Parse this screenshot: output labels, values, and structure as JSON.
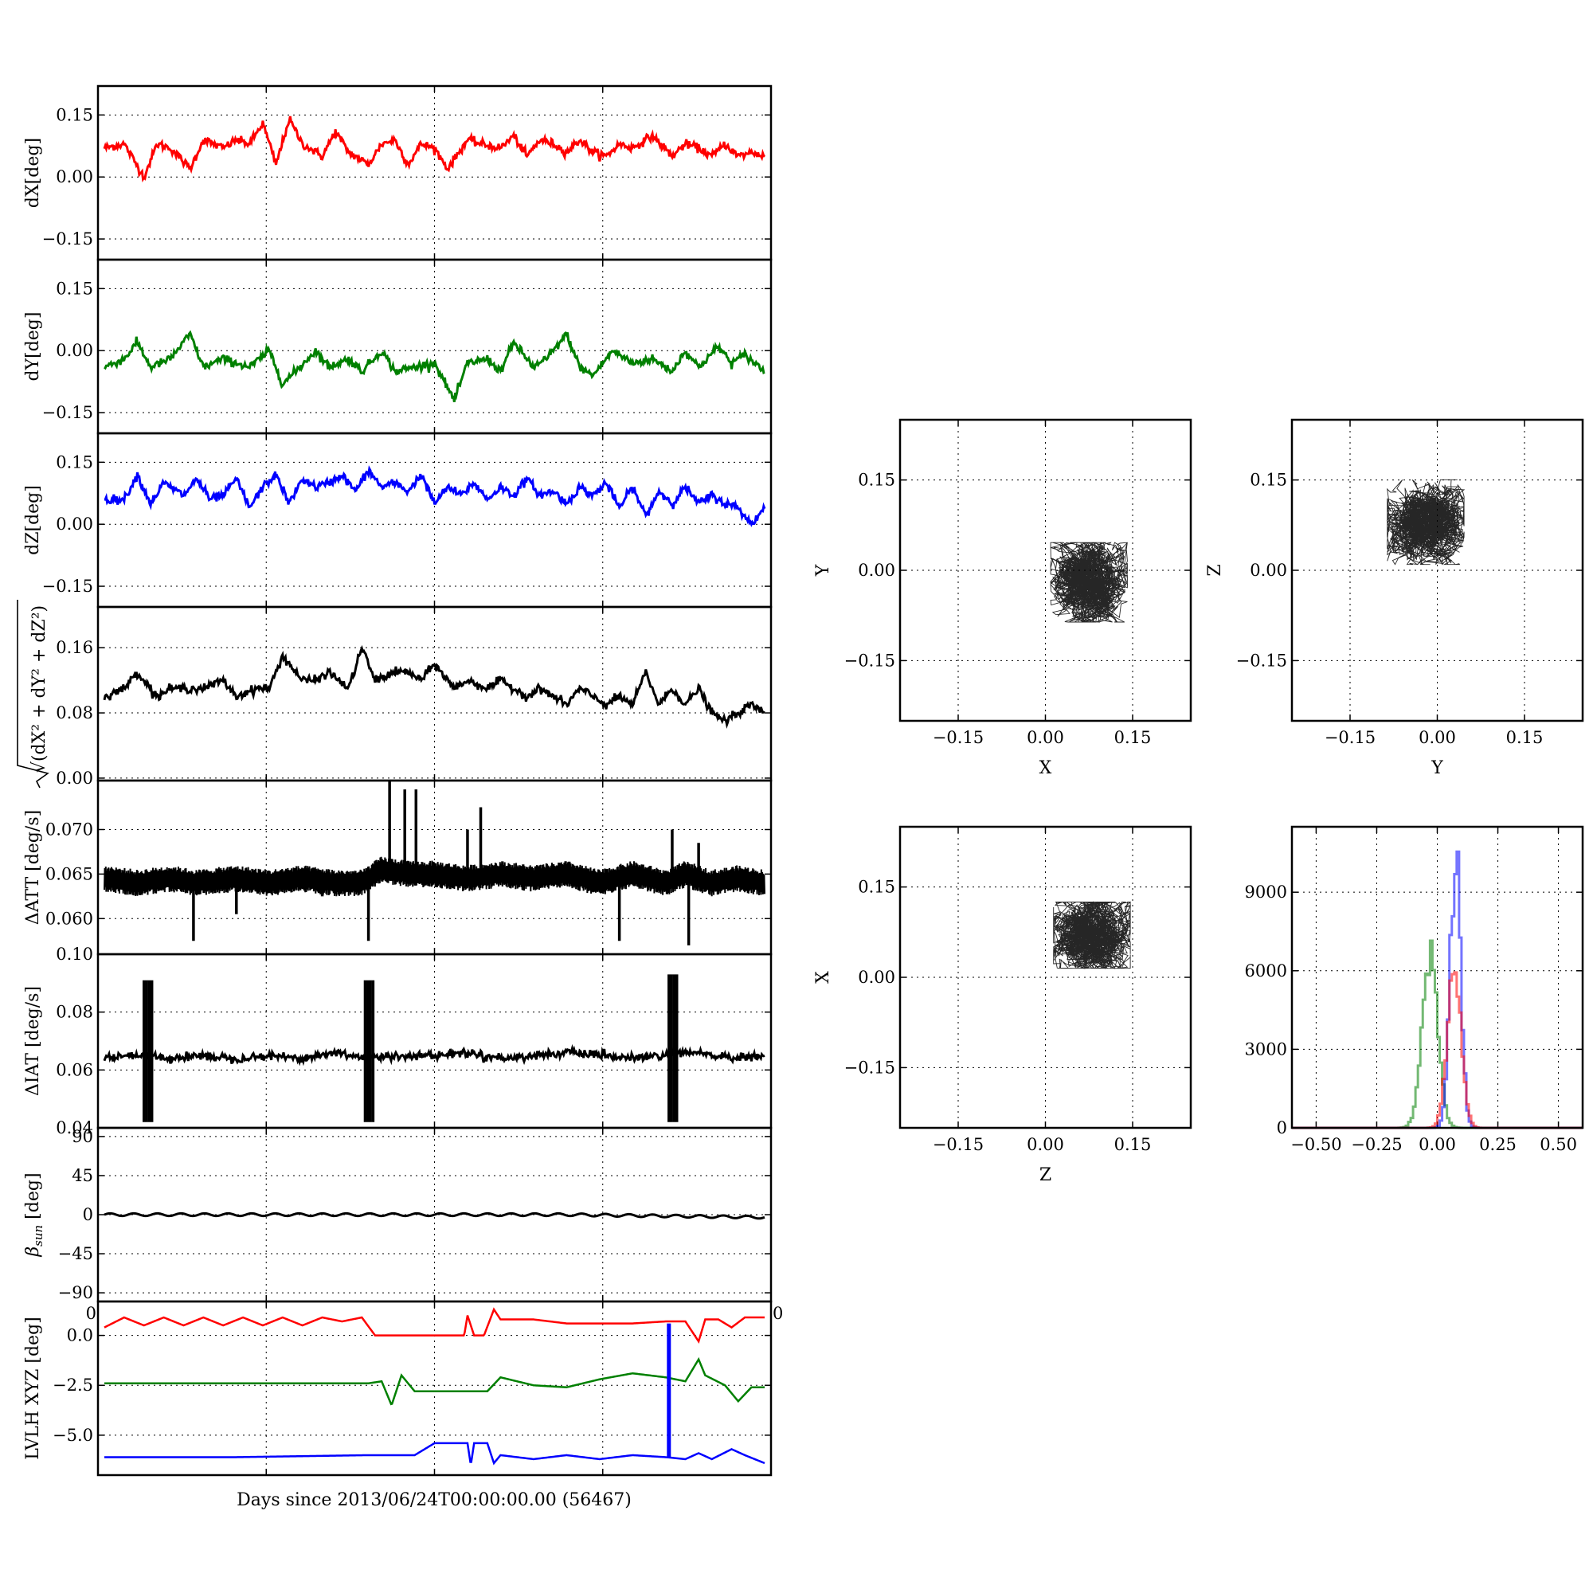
{
  "figure": {
    "xlabel": "Days since 2013/06/24T00:00:00.00 (56467)"
  },
  "colors": {
    "red": "#ff0000",
    "green": "#008000",
    "blue": "#0000ff",
    "black": "#000000"
  },
  "chart_data": [
    {
      "id": "dX",
      "type": "line",
      "ylabel": "dX[deg]",
      "ylim": [
        -0.2,
        0.22
      ],
      "yticks": [
        "0.15",
        "0.00",
        "−0.15"
      ],
      "ytick_values": [
        0.15,
        0,
        -0.15
      ],
      "xlim": [
        0,
        1
      ],
      "grid": true,
      "series": [
        {
          "color": "red",
          "x": [
            0,
            0.03,
            0.06,
            0.08,
            0.1,
            0.13,
            0.15,
            0.18,
            0.2,
            0.22,
            0.24,
            0.26,
            0.28,
            0.3,
            0.33,
            0.35,
            0.37,
            0.4,
            0.42,
            0.44,
            0.46,
            0.48,
            0.5,
            0.52,
            0.55,
            0.57,
            0.6,
            0.62,
            0.64,
            0.66,
            0.68,
            0.7,
            0.72,
            0.74,
            0.76,
            0.78,
            0.8,
            0.83,
            0.86,
            0.88,
            0.9,
            0.92,
            0.94,
            0.96,
            0.98,
            1
          ],
          "y": [
            0.07,
            0.08,
            0.0,
            0.08,
            0.07,
            0.02,
            0.09,
            0.07,
            0.09,
            0.08,
            0.13,
            0.03,
            0.14,
            0.08,
            0.05,
            0.11,
            0.06,
            0.03,
            0.08,
            0.09,
            0.03,
            0.08,
            0.07,
            0.02,
            0.09,
            0.08,
            0.07,
            0.1,
            0.05,
            0.09,
            0.08,
            0.06,
            0.09,
            0.06,
            0.05,
            0.08,
            0.07,
            0.1,
            0.05,
            0.08,
            0.07,
            0.05,
            0.08,
            0.05,
            0.06,
            0.05
          ]
        }
      ]
    },
    {
      "id": "dY",
      "type": "line",
      "ylabel": "dY[deg]",
      "ylim": [
        -0.2,
        0.22
      ],
      "yticks": [
        "0.15",
        "0.00",
        "−0.15"
      ],
      "ytick_values": [
        0.15,
        0,
        -0.15
      ],
      "xlim": [
        0,
        1
      ],
      "grid": true,
      "series": [
        {
          "color": "green",
          "x": [
            0,
            0.03,
            0.05,
            0.07,
            0.1,
            0.13,
            0.15,
            0.18,
            0.2,
            0.22,
            0.25,
            0.27,
            0.29,
            0.32,
            0.34,
            0.37,
            0.39,
            0.42,
            0.44,
            0.47,
            0.5,
            0.53,
            0.55,
            0.58,
            0.6,
            0.62,
            0.65,
            0.67,
            0.7,
            0.72,
            0.74,
            0.77,
            0.8,
            0.83,
            0.86,
            0.88,
            0.9,
            0.93,
            0.95,
            0.97,
            1
          ],
          "y": [
            -0.04,
            -0.02,
            0.02,
            -0.04,
            -0.02,
            0.04,
            -0.04,
            -0.02,
            -0.03,
            -0.04,
            0.0,
            -0.08,
            -0.05,
            0.0,
            -0.04,
            -0.02,
            -0.05,
            0.0,
            -0.05,
            -0.04,
            -0.03,
            -0.12,
            -0.03,
            -0.02,
            -0.05,
            0.02,
            -0.04,
            -0.02,
            0.04,
            -0.04,
            -0.06,
            0.0,
            -0.03,
            -0.02,
            -0.05,
            0.0,
            -0.04,
            0.01,
            -0.03,
            -0.01,
            -0.05
          ]
        }
      ]
    },
    {
      "id": "dZ",
      "type": "line",
      "ylabel": "dZ[deg]",
      "ylim": [
        -0.2,
        0.22
      ],
      "yticks": [
        "0.15",
        "0.00",
        "−0.15"
      ],
      "ytick_values": [
        0.15,
        0,
        -0.15
      ],
      "xlim": [
        0,
        1
      ],
      "grid": true,
      "series": [
        {
          "color": "blue",
          "x": [
            0,
            0.03,
            0.05,
            0.07,
            0.09,
            0.12,
            0.14,
            0.16,
            0.18,
            0.2,
            0.22,
            0.24,
            0.26,
            0.28,
            0.3,
            0.32,
            0.34,
            0.36,
            0.38,
            0.4,
            0.42,
            0.44,
            0.46,
            0.48,
            0.5,
            0.52,
            0.54,
            0.56,
            0.58,
            0.6,
            0.62,
            0.64,
            0.66,
            0.68,
            0.7,
            0.72,
            0.74,
            0.76,
            0.78,
            0.8,
            0.82,
            0.84,
            0.86,
            0.88,
            0.9,
            0.92,
            0.94,
            0.96,
            0.98,
            1
          ],
          "y": [
            0.06,
            0.06,
            0.12,
            0.05,
            0.1,
            0.07,
            0.11,
            0.06,
            0.07,
            0.11,
            0.04,
            0.09,
            0.12,
            0.05,
            0.11,
            0.09,
            0.1,
            0.12,
            0.08,
            0.13,
            0.09,
            0.1,
            0.08,
            0.12,
            0.05,
            0.09,
            0.07,
            0.1,
            0.06,
            0.09,
            0.07,
            0.11,
            0.07,
            0.08,
            0.05,
            0.09,
            0.07,
            0.1,
            0.04,
            0.09,
            0.02,
            0.08,
            0.05,
            0.09,
            0.05,
            0.07,
            0.05,
            0.04,
            0.0,
            0.04
          ]
        }
      ]
    },
    {
      "id": "dR",
      "type": "line",
      "ylabel": "√(dX² + dY² + dZ²)",
      "ylim": [
        -0.003,
        0.21
      ],
      "yticks": [
        "0.16",
        "0.08",
        "0.00"
      ],
      "ytick_values": [
        0.16,
        0.08,
        0
      ],
      "xlim": [
        0,
        1
      ],
      "grid": true,
      "series": [
        {
          "color": "black",
          "x": [
            0,
            0.03,
            0.05,
            0.08,
            0.1,
            0.13,
            0.15,
            0.18,
            0.2,
            0.23,
            0.25,
            0.27,
            0.3,
            0.32,
            0.34,
            0.37,
            0.39,
            0.41,
            0.44,
            0.46,
            0.48,
            0.5,
            0.53,
            0.55,
            0.58,
            0.6,
            0.62,
            0.64,
            0.66,
            0.68,
            0.7,
            0.72,
            0.74,
            0.76,
            0.78,
            0.8,
            0.82,
            0.84,
            0.86,
            0.88,
            0.9,
            0.92,
            0.94,
            0.96,
            0.98,
            1
          ],
          "y": [
            0.1,
            0.11,
            0.13,
            0.1,
            0.11,
            0.11,
            0.11,
            0.12,
            0.1,
            0.11,
            0.11,
            0.15,
            0.12,
            0.12,
            0.13,
            0.11,
            0.16,
            0.12,
            0.13,
            0.13,
            0.12,
            0.14,
            0.11,
            0.12,
            0.11,
            0.12,
            0.11,
            0.1,
            0.11,
            0.1,
            0.09,
            0.11,
            0.1,
            0.09,
            0.1,
            0.09,
            0.13,
            0.09,
            0.11,
            0.09,
            0.11,
            0.08,
            0.07,
            0.08,
            0.09,
            0.08
          ]
        }
      ]
    },
    {
      "id": "dATT",
      "type": "line",
      "ylabel": "ΔATT [deg/s]",
      "ylim": [
        0.056,
        0.0755
      ],
      "yticks": [
        "0.070",
        "0.065",
        "0.060"
      ],
      "ytick_values": [
        0.07,
        0.065,
        0.06
      ],
      "xlim": [
        0,
        1
      ],
      "grid": true,
      "series": [
        {
          "color": "black",
          "x": [
            0,
            0.05,
            0.1,
            0.14,
            0.2,
            0.25,
            0.3,
            0.35,
            0.39,
            0.42,
            0.46,
            0.5,
            0.55,
            0.6,
            0.65,
            0.7,
            0.75,
            0.8,
            0.85,
            0.88,
            0.92,
            0.96,
            1
          ],
          "y": [
            0.0645,
            0.064,
            0.0645,
            0.064,
            0.0645,
            0.064,
            0.0645,
            0.064,
            0.064,
            0.0655,
            0.065,
            0.065,
            0.0645,
            0.065,
            0.0645,
            0.065,
            0.064,
            0.065,
            0.064,
            0.065,
            0.064,
            0.0645,
            0.064
          ],
          "band_halfwidth": 0.0015,
          "spikes": [
            [
              0.135,
              0.0575
            ],
            [
              0.2,
              0.0605
            ],
            [
              0.33,
              0.0625
            ],
            [
              0.4,
              0.0575
            ],
            [
              0.432,
              0.0755
            ],
            [
              0.455,
              0.0745
            ],
            [
              0.472,
              0.0745
            ],
            [
              0.55,
              0.07
            ],
            [
              0.57,
              0.0725
            ],
            [
              0.78,
              0.0575
            ],
            [
              0.86,
              0.07
            ],
            [
              0.885,
              0.057
            ],
            [
              0.9,
              0.0685
            ]
          ]
        }
      ]
    },
    {
      "id": "dIAT",
      "type": "line",
      "ylabel": "ΔIAT [deg/s]",
      "ylim": [
        0.04,
        0.1
      ],
      "yticks": [
        "0.10",
        "0.08",
        "0.06",
        "0.04"
      ],
      "ytick_values": [
        0.1,
        0.08,
        0.06,
        0.04
      ],
      "xlim": [
        0,
        1
      ],
      "grid": true,
      "series": [
        {
          "color": "black",
          "x": [
            0,
            0.05,
            0.1,
            0.15,
            0.2,
            0.25,
            0.3,
            0.35,
            0.4,
            0.45,
            0.5,
            0.55,
            0.6,
            0.65,
            0.7,
            0.75,
            0.8,
            0.85,
            0.9,
            0.95,
            1
          ],
          "y": [
            0.064,
            0.065,
            0.064,
            0.065,
            0.064,
            0.065,
            0.064,
            0.066,
            0.064,
            0.065,
            0.065,
            0.066,
            0.064,
            0.065,
            0.066,
            0.065,
            0.064,
            0.065,
            0.066,
            0.064,
            0.065
          ],
          "bursts": [
            [
              0.06,
              0.042,
              0.091
            ],
            [
              0.395,
              0.042,
              0.091
            ],
            [
              0.855,
              0.042,
              0.093
            ]
          ]
        }
      ]
    },
    {
      "id": "beta",
      "type": "line",
      "ylabel": "βsun [deg]",
      "ylim": [
        -100,
        100
      ],
      "yticks": [
        "90",
        "45",
        "0",
        "−45",
        "−90"
      ],
      "ytick_values": [
        90,
        45,
        0,
        -45,
        -90
      ],
      "xlim": [
        0,
        1
      ],
      "grid": true,
      "series": [
        {
          "color": "black",
          "amplitude": 1.5,
          "cycles": 28,
          "trend_end": -3
        }
      ]
    },
    {
      "id": "lvlh",
      "type": "line",
      "ylabel": "LVLH XYZ [deg]",
      "ylim": [
        -7,
        1.7
      ],
      "yticks": [
        "0.0",
        "−2.5",
        "−5.0"
      ],
      "ytick_values": [
        0,
        -2.5,
        -5
      ],
      "xlim": [
        0,
        1
      ],
      "grid": true,
      "corner_labels": [
        "0",
        "0"
      ],
      "series": [
        {
          "color": "red",
          "x": [
            0,
            0.03,
            0.06,
            0.09,
            0.12,
            0.15,
            0.18,
            0.21,
            0.24,
            0.27,
            0.3,
            0.33,
            0.36,
            0.39,
            0.41,
            0.47,
            0.545,
            0.55,
            0.56,
            0.575,
            0.59,
            0.6,
            0.65,
            0.7,
            0.75,
            0.8,
            0.85,
            0.88,
            0.9,
            0.91,
            0.93,
            0.95,
            0.97,
            1
          ],
          "y": [
            0.4,
            0.9,
            0.5,
            0.9,
            0.5,
            0.9,
            0.5,
            0.9,
            0.5,
            0.9,
            0.5,
            0.9,
            0.7,
            0.9,
            0.0,
            0.0,
            0.0,
            1.0,
            0.0,
            0.0,
            1.3,
            0.8,
            0.8,
            0.6,
            0.6,
            0.6,
            0.7,
            0.7,
            -0.3,
            0.8,
            0.8,
            0.4,
            0.9,
            0.9
          ]
        },
        {
          "color": "green",
          "x": [
            0,
            0.2,
            0.4,
            0.42,
            0.435,
            0.45,
            0.47,
            0.5,
            0.55,
            0.58,
            0.6,
            0.65,
            0.7,
            0.75,
            0.8,
            0.85,
            0.88,
            0.9,
            0.91,
            0.94,
            0.96,
            0.98,
            1
          ],
          "y": [
            -2.4,
            -2.4,
            -2.4,
            -2.3,
            -3.5,
            -2.0,
            -2.8,
            -2.8,
            -2.8,
            -2.8,
            -2.1,
            -2.5,
            -2.6,
            -2.2,
            -1.9,
            -2.1,
            -2.3,
            -1.2,
            -2.0,
            -2.5,
            -3.3,
            -2.6,
            -2.6
          ]
        },
        {
          "color": "blue",
          "x": [
            0,
            0.2,
            0.4,
            0.47,
            0.5,
            0.55,
            0.555,
            0.56,
            0.58,
            0.59,
            0.6,
            0.65,
            0.7,
            0.75,
            0.8,
            0.85,
            0.88,
            0.9,
            0.92,
            0.95,
            0.97,
            1
          ],
          "y": [
            -6.1,
            -6.1,
            -6.0,
            -6.0,
            -5.4,
            -5.4,
            -6.5,
            -5.4,
            -5.4,
            -6.4,
            -6.0,
            -6.2,
            -6.0,
            -6.2,
            -6.0,
            -6.1,
            -6.2,
            -5.9,
            -6.2,
            -5.7,
            -6.0,
            -6.4
          ]
        }
      ],
      "vline": {
        "x": 0.855,
        "from": 0.6,
        "to": -6.1,
        "color": "blue"
      }
    },
    {
      "id": "scatterXY",
      "type": "scatter",
      "xlabel": "X",
      "ylabel": "Y",
      "xlim": [
        -0.25,
        0.25
      ],
      "ylim": [
        -0.25,
        0.25
      ],
      "xticks": [
        "−0.15",
        "0.00",
        "0.15"
      ],
      "xtick_values": [
        -0.15,
        0,
        0.15
      ],
      "yticks": [
        "0.15",
        "0.00",
        "−0.15"
      ],
      "ytick_values": [
        0.15,
        0,
        -0.15
      ],
      "grid": true,
      "cluster": {
        "center": [
          0.075,
          -0.02
        ],
        "spread": [
          0.03,
          0.03
        ],
        "corr": 0
      }
    },
    {
      "id": "scatterYZ",
      "type": "scatter",
      "xlabel": "Y",
      "ylabel": "Z",
      "xlim": [
        -0.25,
        0.25
      ],
      "ylim": [
        -0.25,
        0.25
      ],
      "xticks": [
        "−0.15",
        "0.00",
        "0.15"
      ],
      "xtick_values": [
        -0.15,
        0,
        0.15
      ],
      "yticks": [
        "0.15",
        "0.00",
        "−0.15"
      ],
      "ytick_values": [
        0.15,
        0,
        -0.15
      ],
      "grid": true,
      "cluster": {
        "center": [
          -0.02,
          0.08
        ],
        "spread": [
          0.03,
          0.032
        ],
        "corr": 0
      }
    },
    {
      "id": "scatterZX",
      "type": "scatter",
      "xlabel": "Z",
      "ylabel": "X",
      "xlim": [
        -0.25,
        0.25
      ],
      "ylim": [
        -0.25,
        0.25
      ],
      "xticks": [
        "−0.15",
        "0.00",
        "0.15"
      ],
      "xtick_values": [
        -0.15,
        0,
        0.15
      ],
      "yticks": [
        "0.15",
        "0.00",
        "−0.15"
      ],
      "ytick_values": [
        0.15,
        0,
        -0.15
      ],
      "grid": true,
      "cluster": {
        "center": [
          0.08,
          0.07
        ],
        "spread": [
          0.03,
          0.025
        ],
        "corr": -0.6
      }
    },
    {
      "id": "hist",
      "type": "histogram",
      "xlim": [
        -0.6,
        0.6
      ],
      "ylim": [
        0,
        11500
      ],
      "xticks": [
        "−0.50",
        "−0.25",
        "0.00",
        "0.25",
        "0.50"
      ],
      "xtick_values": [
        -0.5,
        -0.25,
        0,
        0.25,
        0.5
      ],
      "yticks": [
        "9000",
        "6000",
        "3000",
        "0"
      ],
      "ytick_values": [
        9000,
        6000,
        3000,
        0
      ],
      "grid": true,
      "series": [
        {
          "color": "green",
          "opacity": 0.55,
          "center": -0.03,
          "sigma": 0.032,
          "peak": 6800
        },
        {
          "color": "blue",
          "opacity": 0.55,
          "center": 0.075,
          "sigma": 0.022,
          "peak": 10400
        },
        {
          "color": "red",
          "opacity": 0.55,
          "center": 0.07,
          "sigma": 0.028,
          "peak": 6300
        }
      ]
    }
  ]
}
